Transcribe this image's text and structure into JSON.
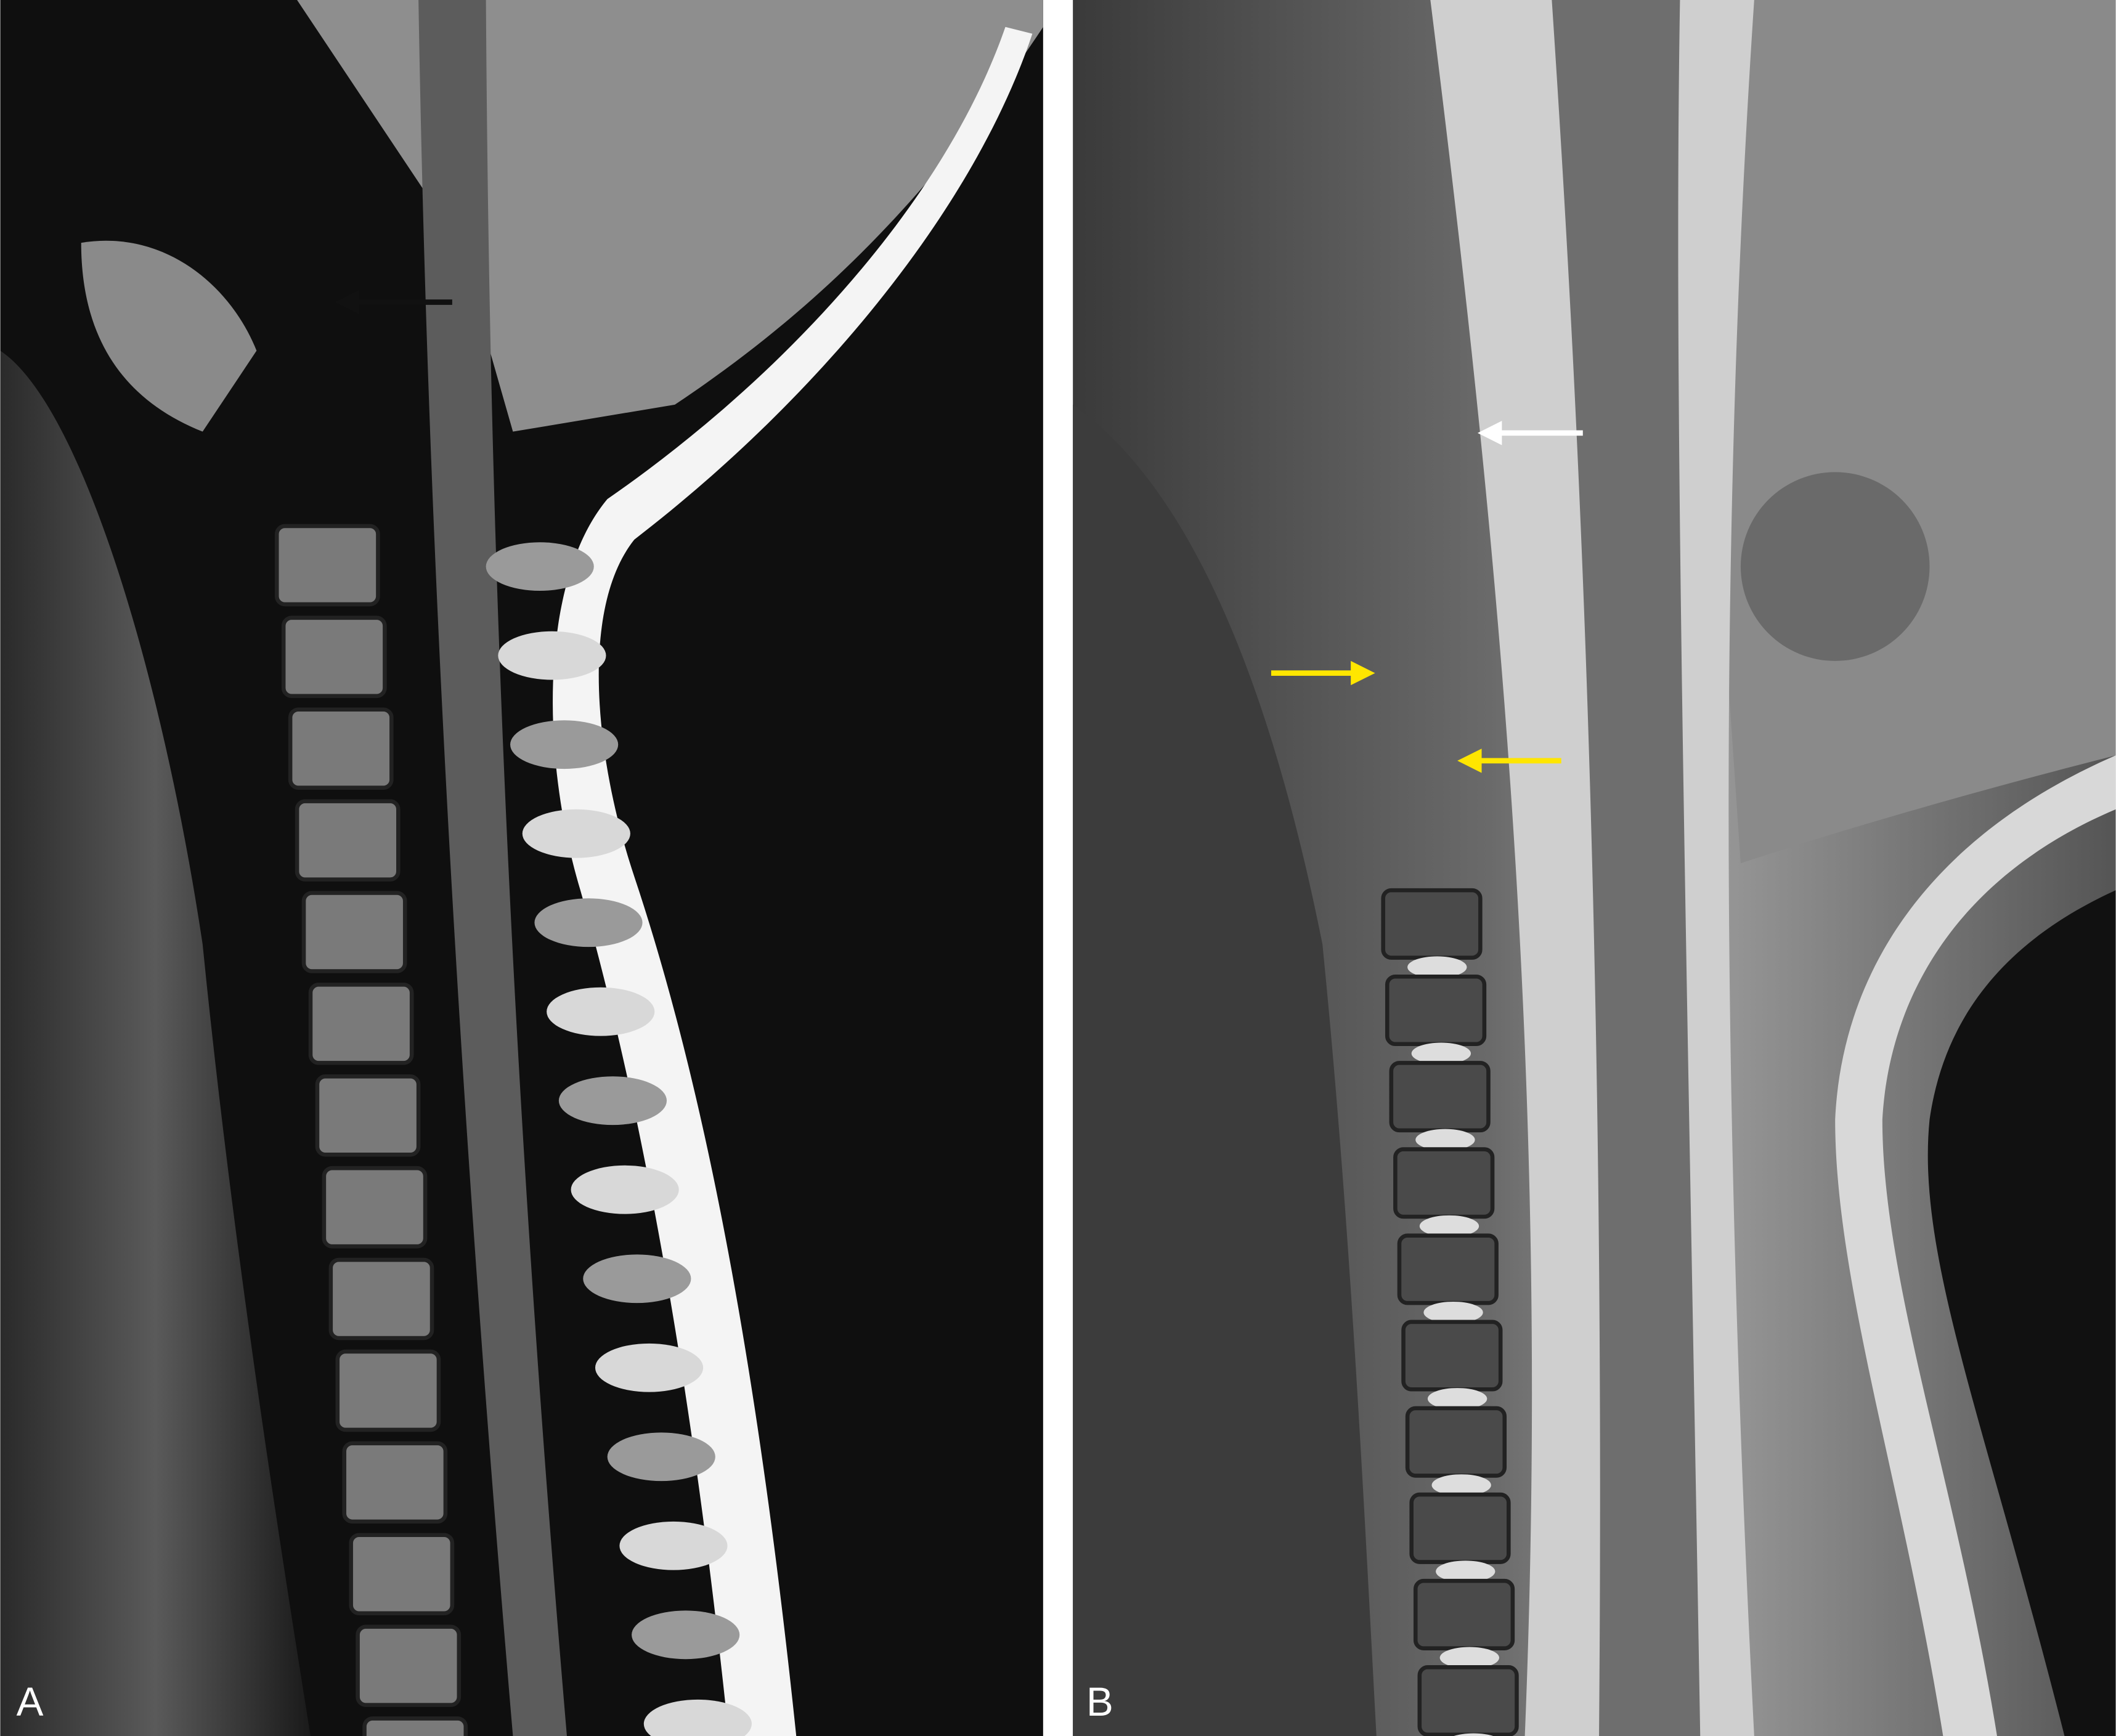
{
  "panels": [
    {
      "label": "A"
    },
    {
      "label": "B"
    }
  ]
}
